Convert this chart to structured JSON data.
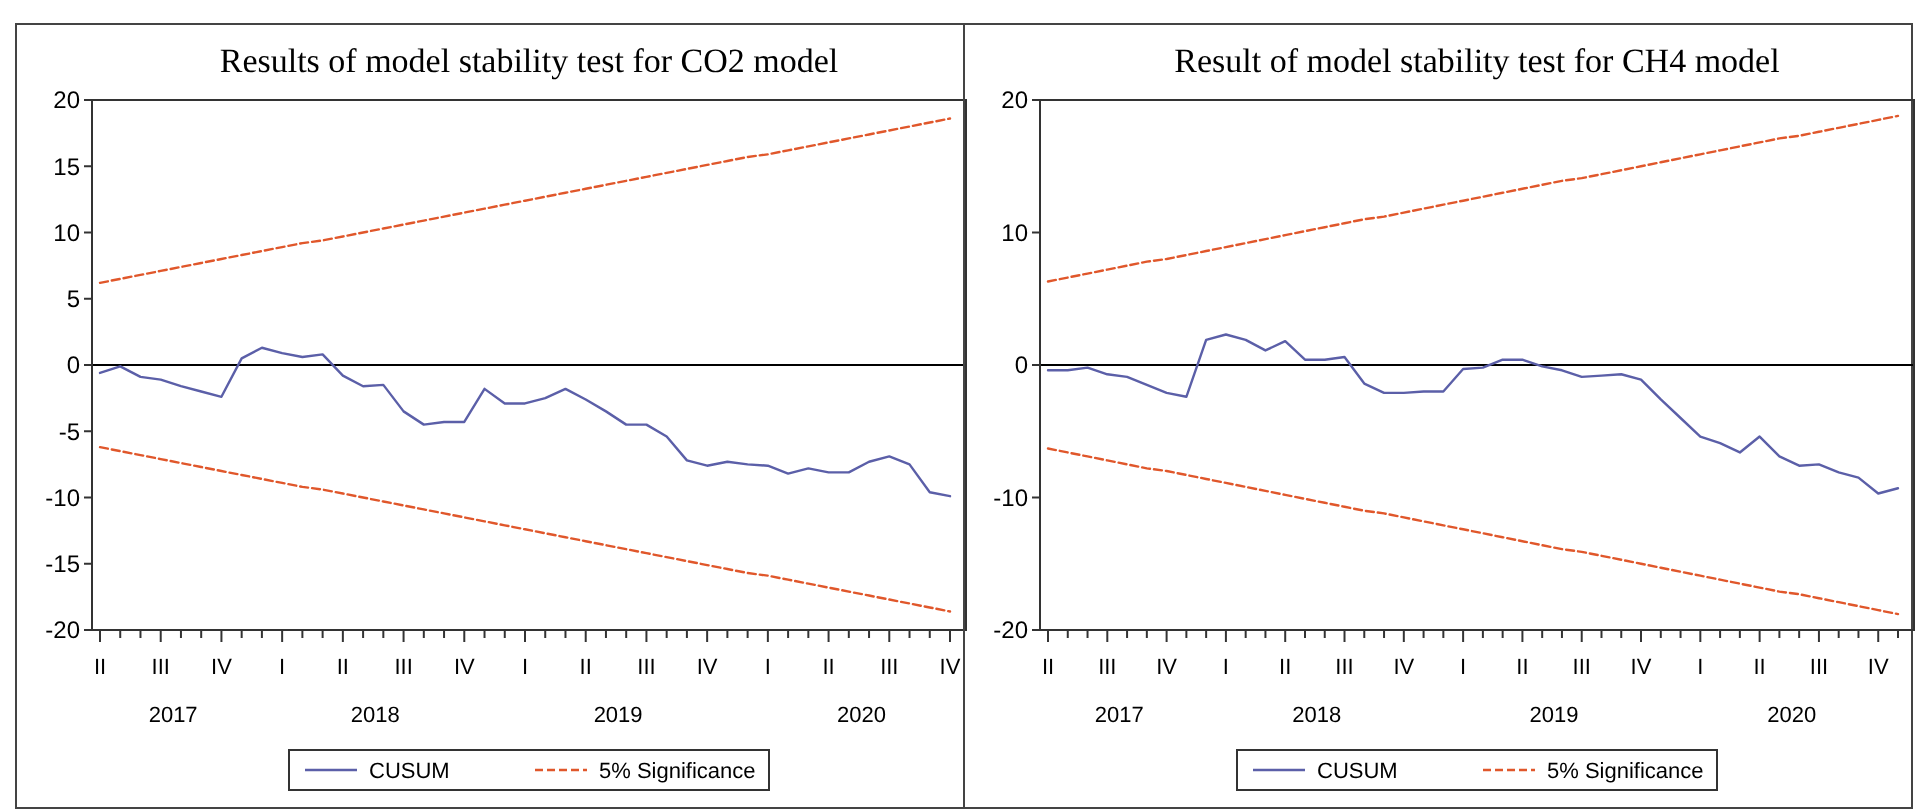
{
  "chart_data": [
    {
      "type": "line",
      "title": "Results of model stability test for CO2 model",
      "legend": "bottom",
      "ylim": [
        -20,
        20
      ],
      "yticks": [
        -20,
        -15,
        -10,
        -5,
        0,
        5,
        10,
        15,
        20
      ],
      "categories": [
        "II",
        null,
        null,
        "III",
        null,
        null,
        "IV",
        null,
        null,
        "I",
        null,
        null,
        "II",
        null,
        null,
        "III",
        null,
        null,
        "IV",
        null,
        null,
        "I",
        null,
        null,
        "II",
        null,
        null,
        "III",
        null,
        null,
        "IV",
        null,
        null,
        "I",
        null,
        null,
        "II",
        null,
        null,
        "III",
        null,
        null,
        "IV"
      ],
      "x2lim": [
        "2017-03-20",
        "2020-10-24"
      ],
      "x2ticks": [
        {
          "value": "2017-07-20",
          "label": "2017"
        },
        {
          "value": "2018-05-20",
          "label": "2018"
        },
        {
          "value": "2019-05-20",
          "label": "2019"
        },
        {
          "value": "2020-05-20",
          "label": "2020"
        }
      ],
      "ref_lines": [
        {
          "axis": "y",
          "value": 0,
          "color": "#000000"
        }
      ],
      "series": [
        {
          "name": "CUSUM",
          "color": "#5b5fa8",
          "line_style": "solid",
          "values": [
            -0.6,
            -0.1,
            -0.9,
            -1.1,
            -1.6,
            -2.0,
            -2.4,
            0.5,
            1.3,
            0.9,
            0.6,
            0.8,
            -0.8,
            -1.6,
            -1.5,
            -3.5,
            -4.5,
            -4.3,
            -4.3,
            -1.8,
            -2.9,
            -2.9,
            -2.5,
            -1.8,
            -2.6,
            -3.5,
            -4.5,
            -4.5,
            -5.4,
            -7.2,
            -7.6,
            -7.3,
            -7.5,
            -7.6,
            -8.2,
            -7.8,
            -8.1,
            -8.1,
            -7.3,
            -6.9,
            -7.5,
            -9.6,
            -9.9
          ]
        },
        {
          "name": "5% Significance",
          "color": "#e0572b",
          "line_style": "dashed",
          "values": [
            6.2,
            6.5,
            6.8,
            7.1,
            7.4,
            7.7,
            8.0,
            8.3,
            8.6,
            8.9,
            9.2,
            9.4,
            9.7,
            10.0,
            10.3,
            10.6,
            10.9,
            11.2,
            11.5,
            11.8,
            12.1,
            12.4,
            12.7,
            13.0,
            13.3,
            13.6,
            13.9,
            14.2,
            14.5,
            14.8,
            15.1,
            15.4,
            15.7,
            15.9,
            16.2,
            16.5,
            16.8,
            17.1,
            17.4,
            17.7,
            18.0,
            18.3,
            18.6
          ]
        },
        {
          "color": "#e0572b",
          "line_style": "dashed",
          "values": [
            -6.2,
            -6.5,
            -6.8,
            -7.1,
            -7.4,
            -7.7,
            -8.0,
            -8.3,
            -8.6,
            -8.9,
            -9.2,
            -9.4,
            -9.7,
            -10.0,
            -10.3,
            -10.6,
            -10.9,
            -11.2,
            -11.5,
            -11.8,
            -12.1,
            -12.4,
            -12.7,
            -13.0,
            -13.3,
            -13.6,
            -13.9,
            -14.2,
            -14.5,
            -14.8,
            -15.1,
            -15.4,
            -15.7,
            -15.9,
            -16.2,
            -16.5,
            -16.8,
            -17.1,
            -17.4,
            -17.7,
            -18.0,
            -18.3,
            -18.6
          ]
        }
      ]
    },
    {
      "type": "line",
      "title": "Result of model stability test for CH4 model",
      "legend": "bottom",
      "ylim": [
        -20,
        20
      ],
      "yticks": [
        -20,
        -10,
        0,
        10,
        20
      ],
      "categories": [
        "II",
        null,
        null,
        "III",
        null,
        null,
        "IV",
        null,
        null,
        "I",
        null,
        null,
        "II",
        null,
        null,
        "III",
        null,
        null,
        "IV",
        null,
        null,
        "I",
        null,
        null,
        "II",
        null,
        null,
        "III",
        null,
        null,
        "IV",
        null,
        null,
        "I",
        null,
        null,
        "II",
        null,
        null,
        "III",
        null,
        null,
        "IV",
        null
      ],
      "x2lim": [
        "2017-03-20",
        "2020-11-24"
      ],
      "x2ticks": [
        {
          "value": "2017-07-20",
          "label": "2017"
        },
        {
          "value": "2018-05-20",
          "label": "2018"
        },
        {
          "value": "2019-05-20",
          "label": "2019"
        },
        {
          "value": "2020-05-20",
          "label": "2020"
        }
      ],
      "ref_lines": [
        {
          "axis": "y",
          "value": 0,
          "color": "#000000"
        }
      ],
      "series": [
        {
          "name": "CUSUM",
          "color": "#5b5fa8",
          "line_style": "solid",
          "values": [
            -0.4,
            -0.4,
            -0.2,
            -0.7,
            -0.9,
            -1.5,
            -2.1,
            -2.4,
            1.9,
            2.3,
            1.9,
            1.1,
            1.8,
            0.4,
            0.4,
            0.6,
            -1.4,
            -2.1,
            -2.1,
            -2.0,
            -2.0,
            -0.3,
            -0.2,
            0.4,
            0.4,
            -0.1,
            -0.4,
            -0.9,
            -0.8,
            -0.7,
            -1.1,
            -2.6,
            -4.0,
            -5.4,
            -5.9,
            -6.6,
            -5.4,
            -6.9,
            -7.6,
            -7.5,
            -8.1,
            -8.5,
            -9.7,
            -9.3
          ]
        },
        {
          "name": "5% Significance",
          "color": "#e0572b",
          "line_style": "dashed",
          "values": [
            6.3,
            6.6,
            6.9,
            7.2,
            7.5,
            7.8,
            8.0,
            8.3,
            8.6,
            8.9,
            9.2,
            9.5,
            9.8,
            10.1,
            10.4,
            10.7,
            11.0,
            11.2,
            11.5,
            11.8,
            12.1,
            12.4,
            12.7,
            13.0,
            13.3,
            13.6,
            13.9,
            14.1,
            14.4,
            14.7,
            15.0,
            15.3,
            15.6,
            15.9,
            16.2,
            16.5,
            16.8,
            17.1,
            17.3,
            17.6,
            17.9,
            18.2,
            18.5,
            18.8
          ]
        },
        {
          "color": "#e0572b",
          "line_style": "dashed",
          "values": [
            -6.3,
            -6.6,
            -6.9,
            -7.2,
            -7.5,
            -7.8,
            -8.0,
            -8.3,
            -8.6,
            -8.9,
            -9.2,
            -9.5,
            -9.8,
            -10.1,
            -10.4,
            -10.7,
            -11.0,
            -11.2,
            -11.5,
            -11.8,
            -12.1,
            -12.4,
            -12.7,
            -13.0,
            -13.3,
            -13.6,
            -13.9,
            -14.1,
            -14.4,
            -14.7,
            -15.0,
            -15.3,
            -15.6,
            -15.9,
            -16.2,
            -16.5,
            -16.8,
            -17.1,
            -17.3,
            -17.6,
            -17.9,
            -18.2,
            -18.5,
            -18.8
          ]
        }
      ]
    }
  ]
}
